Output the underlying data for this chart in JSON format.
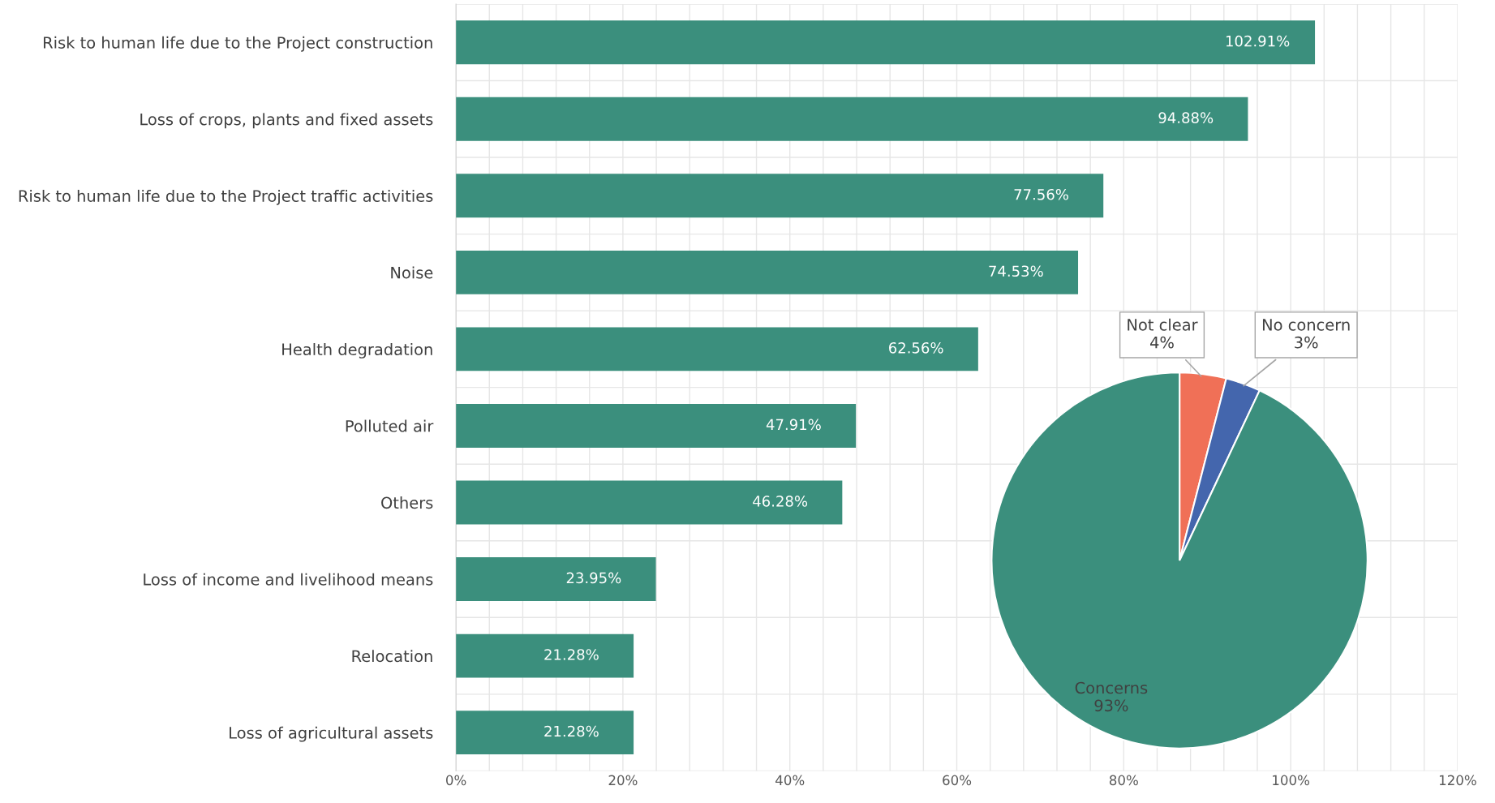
{
  "chart_data": [
    {
      "type": "bar",
      "orientation": "horizontal",
      "categories": [
        "Risk to human life due to the Project construction",
        "Loss of crops, plants and fixed assets",
        "Risk to human life due to the Project traffic activities",
        "Noise",
        "Health degradation",
        "Polluted air",
        "Others",
        "Loss of income and livelihood means",
        "Relocation",
        "Loss of agricultural assets"
      ],
      "values": [
        102.91,
        94.88,
        77.56,
        74.53,
        62.56,
        47.91,
        46.28,
        23.95,
        21.28,
        21.28
      ],
      "value_labels": [
        "102.91%",
        "94.88%",
        "77.56%",
        "74.53%",
        "62.56%",
        "47.91%",
        "46.28%",
        "23.95%",
        "21.28%",
        "21.28%"
      ],
      "color": "#3b8f7d",
      "xlim": [
        0,
        120
      ],
      "xticks": [
        {
          "value": 0,
          "label": "0%"
        },
        {
          "value": 4,
          "label": null
        },
        {
          "value": 8,
          "label": null
        },
        {
          "value": 12,
          "label": null
        },
        {
          "value": 16,
          "label": null
        },
        {
          "value": 20,
          "label": "20%"
        },
        {
          "value": 24,
          "label": null
        },
        {
          "value": 28,
          "label": null
        },
        {
          "value": 32,
          "label": null
        },
        {
          "value": 36,
          "label": null
        },
        {
          "value": 40,
          "label": "40%"
        },
        {
          "value": 44,
          "label": null
        },
        {
          "value": 48,
          "label": null
        },
        {
          "value": 52,
          "label": null
        },
        {
          "value": 56,
          "label": null
        },
        {
          "value": 60,
          "label": "60%"
        },
        {
          "value": 64,
          "label": null
        },
        {
          "value": 68,
          "label": null
        },
        {
          "value": 72,
          "label": null
        },
        {
          "value": 76,
          "label": null
        },
        {
          "value": 80,
          "label": "80%"
        },
        {
          "value": 84,
          "label": null
        },
        {
          "value": 88,
          "label": null
        },
        {
          "value": 92,
          "label": null
        },
        {
          "value": 96,
          "label": null
        },
        {
          "value": 100,
          "label": "100%"
        },
        {
          "value": 104,
          "label": null
        },
        {
          "value": 108,
          "label": null
        },
        {
          "value": 112,
          "label": null
        },
        {
          "value": 116,
          "label": null
        },
        {
          "value": 120,
          "label": "120%"
        }
      ],
      "grid": true
    },
    {
      "type": "pie",
      "categories": [
        "Not clear",
        "No concern",
        "Concerns"
      ],
      "values": [
        4,
        3,
        93
      ],
      "value_labels": [
        "4%",
        "3%",
        "93%"
      ],
      "colors": [
        "#f07057",
        "#4466ad",
        "#3b8f7d"
      ]
    }
  ]
}
